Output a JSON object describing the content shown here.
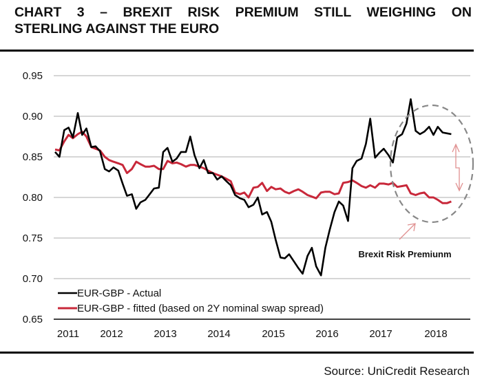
{
  "header": {
    "title_line1": "CHART 3 – BREXIT RISK PREMIUM STILL WEIGHING ON",
    "title_line2": "STERLING AGAINST THE EURO"
  },
  "footer": {
    "source": "Source: UniCredit Research"
  },
  "chart_data": {
    "type": "line",
    "title": "Chart 3 – Brexit risk premium still weighing on sterling against the euro",
    "xlabel": "",
    "ylabel": "",
    "xlim": [
      2011.0,
      2018.4
    ],
    "ylim": [
      0.65,
      0.95
    ],
    "yticks": [
      "0.65",
      "0.70",
      "0.75",
      "0.80",
      "0.85",
      "0.90",
      "0.95"
    ],
    "xticks": [
      "2011",
      "2012",
      "2013",
      "2014",
      "2015",
      "2016",
      "2017",
      "2018"
    ],
    "grid": true,
    "legend_position": "bottom-left",
    "annotation": "Brexit Risk Premiunm",
    "colors": {
      "actual": "#000000",
      "fitted": "#c8283a",
      "annotation": "#e09090",
      "ellipse": "#888888"
    },
    "x": [
      2011.0,
      2011.08,
      2011.17,
      2011.25,
      2011.33,
      2011.42,
      2011.5,
      2011.58,
      2011.67,
      2011.75,
      2011.83,
      2011.92,
      2012.0,
      2012.08,
      2012.17,
      2012.25,
      2012.33,
      2012.42,
      2012.5,
      2012.58,
      2012.67,
      2012.75,
      2012.83,
      2012.92,
      2013.0,
      2013.08,
      2013.17,
      2013.25,
      2013.33,
      2013.42,
      2013.5,
      2013.58,
      2013.67,
      2013.75,
      2013.83,
      2013.92,
      2014.0,
      2014.08,
      2014.17,
      2014.25,
      2014.33,
      2014.42,
      2014.5,
      2014.58,
      2014.67,
      2014.75,
      2014.83,
      2014.92,
      2015.0,
      2015.08,
      2015.17,
      2015.25,
      2015.33,
      2015.42,
      2015.5,
      2015.58,
      2015.67,
      2015.75,
      2015.83,
      2015.92,
      2016.0,
      2016.08,
      2016.17,
      2016.25,
      2016.33,
      2016.42,
      2016.5,
      2016.58,
      2016.67,
      2016.75,
      2016.83,
      2016.92,
      2017.0,
      2017.08,
      2017.17,
      2017.25,
      2017.33,
      2017.42,
      2017.5,
      2017.58,
      2017.67,
      2017.75,
      2017.83,
      2017.92,
      2018.0,
      2018.08,
      2018.17,
      2018.25,
      2018.33
    ],
    "series": [
      {
        "name": "EUR-GBP - Actual",
        "values": [
          0.856,
          0.85,
          0.883,
          0.886,
          0.874,
          0.904,
          0.877,
          0.885,
          0.862,
          0.863,
          0.857,
          0.835,
          0.832,
          0.837,
          0.833,
          0.817,
          0.802,
          0.804,
          0.786,
          0.794,
          0.797,
          0.804,
          0.811,
          0.812,
          0.856,
          0.861,
          0.844,
          0.848,
          0.856,
          0.856,
          0.875,
          0.852,
          0.836,
          0.846,
          0.83,
          0.83,
          0.822,
          0.826,
          0.82,
          0.815,
          0.803,
          0.799,
          0.797,
          0.788,
          0.791,
          0.8,
          0.779,
          0.782,
          0.77,
          0.748,
          0.726,
          0.725,
          0.73,
          0.721,
          0.713,
          0.706,
          0.728,
          0.738,
          0.715,
          0.704,
          0.738,
          0.76,
          0.782,
          0.795,
          0.79,
          0.771,
          0.836,
          0.845,
          0.848,
          0.866,
          0.897,
          0.849,
          0.855,
          0.86,
          0.852,
          0.843,
          0.874,
          0.878,
          0.891,
          0.921,
          0.882,
          0.878,
          0.881,
          0.887,
          0.877,
          0.887,
          0.88,
          0.879,
          0.878
        ]
      },
      {
        "name": "EUR-GBP - fitted (based on 2Y nominal swap spread)",
        "values": [
          0.859,
          0.858,
          0.869,
          0.877,
          0.873,
          0.878,
          0.881,
          0.875,
          0.862,
          0.86,
          0.858,
          0.85,
          0.846,
          0.844,
          0.842,
          0.84,
          0.83,
          0.835,
          0.844,
          0.841,
          0.838,
          0.838,
          0.839,
          0.835,
          0.835,
          0.845,
          0.842,
          0.843,
          0.841,
          0.838,
          0.84,
          0.84,
          0.838,
          0.836,
          0.833,
          0.83,
          0.828,
          0.826,
          0.823,
          0.82,
          0.806,
          0.804,
          0.806,
          0.8,
          0.812,
          0.813,
          0.818,
          0.808,
          0.813,
          0.81,
          0.811,
          0.807,
          0.805,
          0.808,
          0.81,
          0.807,
          0.803,
          0.801,
          0.799,
          0.806,
          0.807,
          0.807,
          0.804,
          0.805,
          0.818,
          0.819,
          0.821,
          0.818,
          0.814,
          0.812,
          0.815,
          0.812,
          0.817,
          0.817,
          0.816,
          0.818,
          0.813,
          0.814,
          0.815,
          0.805,
          0.803,
          0.805,
          0.806,
          0.8,
          0.8,
          0.797,
          0.793,
          0.793,
          0.795
        ]
      }
    ]
  }
}
